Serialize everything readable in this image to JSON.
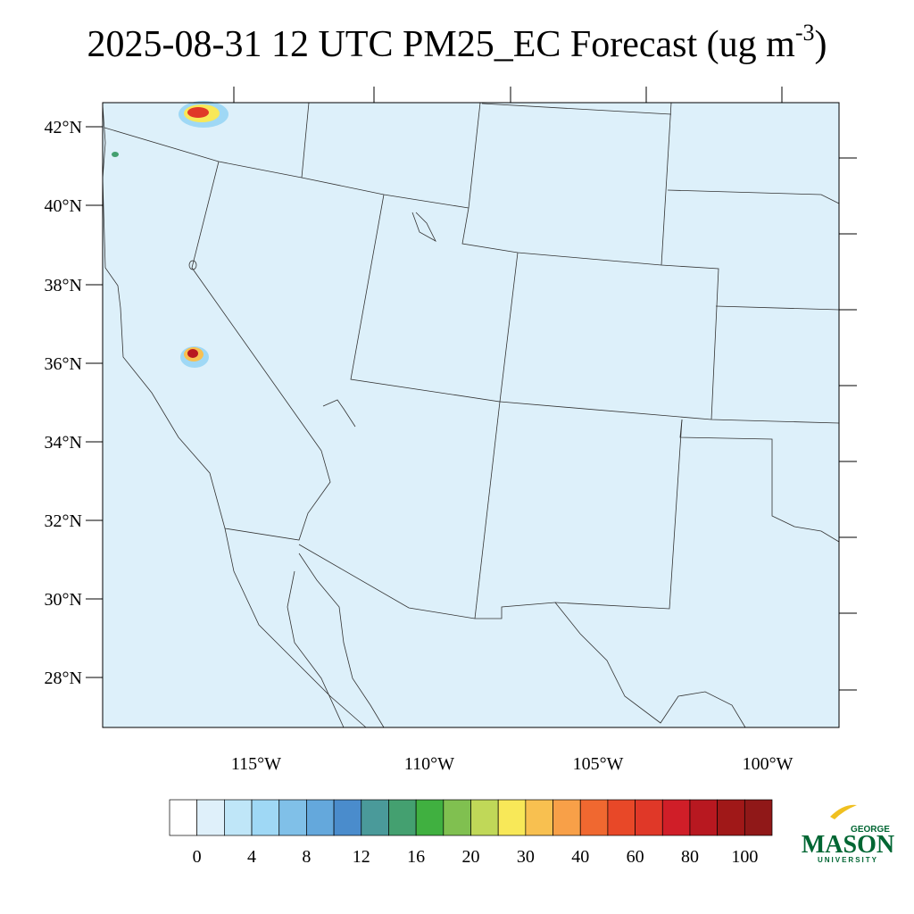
{
  "title": {
    "text": "2025-08-31 12 UTC PM25_EC Forecast (ug m",
    "superscript": "-3",
    "close": ")"
  },
  "map": {
    "lat_labels": [
      "42°N",
      "40°N",
      "38°N",
      "36°N",
      "34°N",
      "32°N",
      "30°N",
      "28°N"
    ],
    "lon_labels": [
      "115°W",
      "110°W",
      "105°W",
      "100°W"
    ]
  },
  "colorbar": {
    "labels": [
      "0",
      "4",
      "8",
      "12",
      "16",
      "20",
      "30",
      "40",
      "60",
      "80",
      "100"
    ],
    "colors": [
      "#ffffff",
      "#dff0fa",
      "#bfe6f8",
      "#9fd8f5",
      "#80c0e8",
      "#64a8dc",
      "#4a8ccc",
      "#4a9a9a",
      "#44a070",
      "#40b040",
      "#80c050",
      "#c0d858",
      "#f8e858",
      "#f8c050",
      "#f8a048",
      "#f06830",
      "#e84828",
      "#e03828",
      "#d01e28",
      "#b81820",
      "#a01818",
      "#901818"
    ]
  },
  "logo": {
    "top": "GEORGE",
    "main": "MASON",
    "bottom": "UNIVERSITY"
  }
}
